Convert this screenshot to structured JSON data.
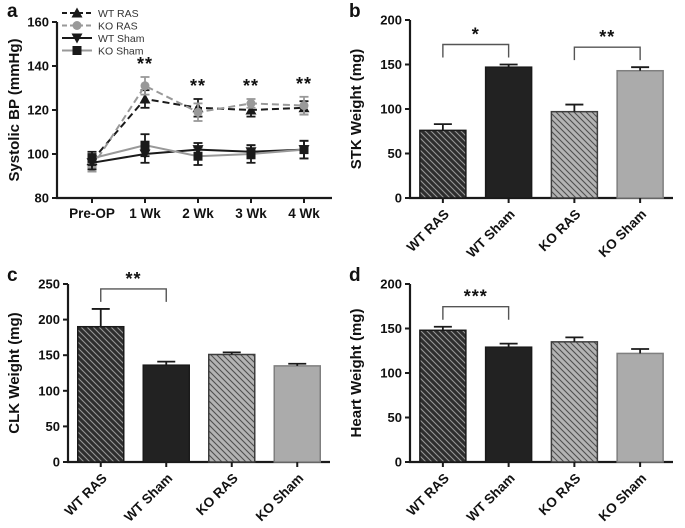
{
  "figure": {
    "panels": [
      {
        "letter": "a"
      },
      {
        "letter": "b"
      },
      {
        "letter": "c"
      },
      {
        "letter": "d"
      }
    ]
  },
  "colors": {
    "axis": "#1a1a1a",
    "black_series": "#1a1a1a",
    "gray_series": "#999999",
    "solid_black_bar": "#222222",
    "solid_gray_bar": "#ababab",
    "solid_gray_edge": "#7f7f7f",
    "dark_hatch_bg": "#2e2e2e",
    "dark_hatch_line": "#969696",
    "gray_hatch_bg": "#b3b3b3",
    "gray_hatch_line": "#4f4f4f",
    "bracket": "#555555",
    "text": "#111111"
  },
  "chart_data": [
    {
      "panel": "a",
      "type": "line",
      "title": "",
      "xlabel": "",
      "ylabel": "Systolic BP (mmHg)",
      "ylim": [
        80,
        160
      ],
      "yticks": [
        80,
        100,
        120,
        140,
        160
      ],
      "categories": [
        "Pre-OP",
        "1 Wk",
        "2 Wk",
        "3 Wk",
        "4 Wk"
      ],
      "grid": false,
      "legend_position": "top-left",
      "series": [
        {
          "name": "WT RAS",
          "values": [
            97,
            125,
            121,
            120,
            121
          ],
          "errors": [
            3,
            4,
            4,
            3,
            3
          ],
          "marker": "triangle-up",
          "line": "dashed",
          "color": "#1a1a1a"
        },
        {
          "name": "KO RAS",
          "values": [
            94,
            131,
            119,
            123,
            122
          ],
          "errors": [
            2,
            4,
            4,
            2,
            4
          ],
          "marker": "circle",
          "line": "dashed",
          "color": "#999999"
        },
        {
          "name": "WT Sham",
          "values": [
            96,
            100,
            102,
            101,
            102
          ],
          "errors": [
            3,
            4,
            3,
            3,
            4
          ],
          "marker": "triangle-down",
          "line": "solid",
          "color": "#1a1a1a"
        },
        {
          "name": "KO Sham",
          "values": [
            98,
            104,
            99,
            100,
            102
          ],
          "errors": [
            3,
            5,
            4,
            4,
            4
          ],
          "marker": "square",
          "line": "solid",
          "color": "#999999",
          "marker_color": "#1a1a1a"
        }
      ],
      "annotations": [
        {
          "text": "**",
          "category_index": 1
        },
        {
          "text": "**",
          "category_index": 2
        },
        {
          "text": "**",
          "category_index": 3
        },
        {
          "text": "**",
          "category_index": 4
        }
      ]
    },
    {
      "panel": "b",
      "type": "bar",
      "title": "",
      "xlabel": "",
      "ylabel": "STK Weight (mg)",
      "ylim": [
        0,
        200
      ],
      "yticks": [
        0,
        50,
        100,
        150,
        200
      ],
      "grid": false,
      "categories": [
        "WT RAS",
        "WT Sham",
        "KO RAS",
        "KO Sham"
      ],
      "values": [
        76,
        147,
        97,
        143
      ],
      "errors": [
        7,
        3,
        8,
        4
      ],
      "bar_styles": [
        "dark-hatched",
        "solid-black",
        "gray-hatched",
        "solid-gray"
      ],
      "significance": [
        {
          "from": 0,
          "to": 1,
          "label": "*"
        },
        {
          "from": 2,
          "to": 3,
          "label": "**"
        }
      ]
    },
    {
      "panel": "c",
      "type": "bar",
      "title": "",
      "xlabel": "",
      "ylabel": "CLK Weight (mg)",
      "ylim": [
        0,
        250
      ],
      "yticks": [
        0,
        50,
        100,
        150,
        200,
        250
      ],
      "grid": false,
      "categories": [
        "WT RAS",
        "WT Sham",
        "KO RAS",
        "KO Sham"
      ],
      "values": [
        190,
        136,
        151,
        135
      ],
      "errors": [
        25,
        5,
        3,
        3
      ],
      "bar_styles": [
        "dark-hatched",
        "solid-black",
        "gray-hatched",
        "solid-gray"
      ],
      "significance": [
        {
          "from": 0,
          "to": 1,
          "label": "**"
        }
      ]
    },
    {
      "panel": "d",
      "type": "bar",
      "title": "",
      "xlabel": "",
      "ylabel": "Heart Weight (mg)",
      "ylim": [
        0,
        200
      ],
      "yticks": [
        0,
        50,
        100,
        150,
        200
      ],
      "grid": false,
      "categories": [
        "WT RAS",
        "WT Sham",
        "KO RAS",
        "KO Sham"
      ],
      "values": [
        148,
        129,
        135,
        122
      ],
      "errors": [
        4,
        4,
        5,
        5
      ],
      "bar_styles": [
        "dark-hatched",
        "solid-black",
        "gray-hatched",
        "solid-gray"
      ],
      "significance": [
        {
          "from": 0,
          "to": 1,
          "label": "***"
        }
      ]
    }
  ]
}
